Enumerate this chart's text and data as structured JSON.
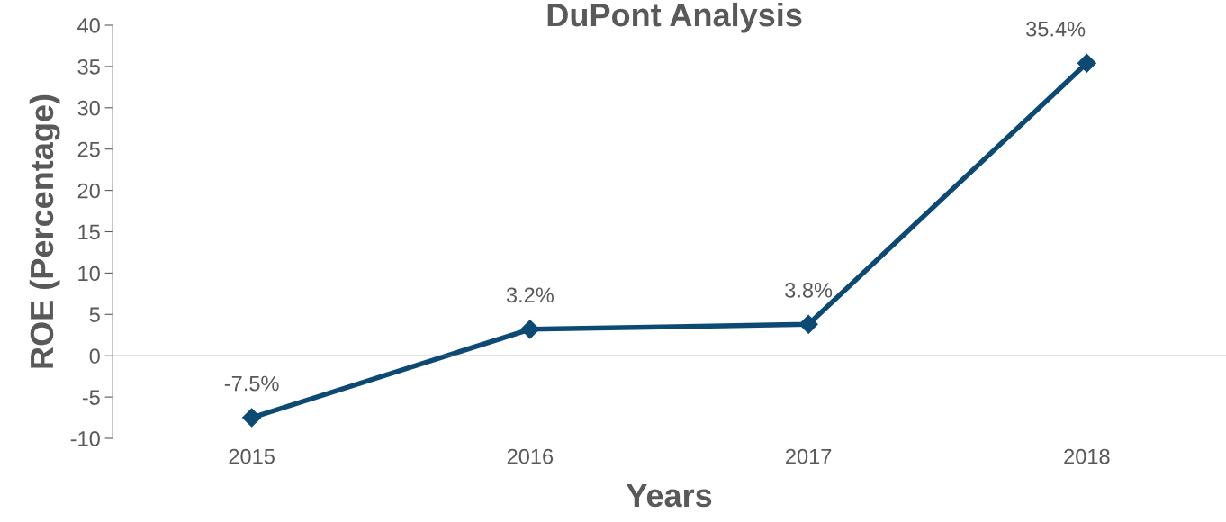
{
  "chart_data": {
    "type": "line",
    "title": "DuPont Analysis",
    "xlabel": "Years",
    "ylabel": "ROE (Percentage)",
    "categories": [
      "2015",
      "2016",
      "2017",
      "2018"
    ],
    "series": [
      {
        "color": "#0d4a73",
        "values": [
          -7.5,
          3.2,
          3.8,
          35.4
        ],
        "value_labels": [
          "-7.5%",
          "3.2%",
          "3.8%",
          "35.4%"
        ]
      }
    ],
    "ylim": [
      -10,
      40
    ],
    "yticks": [
      {
        "value": -10,
        "label": "-10"
      },
      {
        "value": -5,
        "label": "-5"
      },
      0,
      5,
      10,
      15,
      20,
      25,
      30,
      35,
      40
    ],
    "legend": false,
    "marker": "diamond",
    "line_style": "solid"
  }
}
